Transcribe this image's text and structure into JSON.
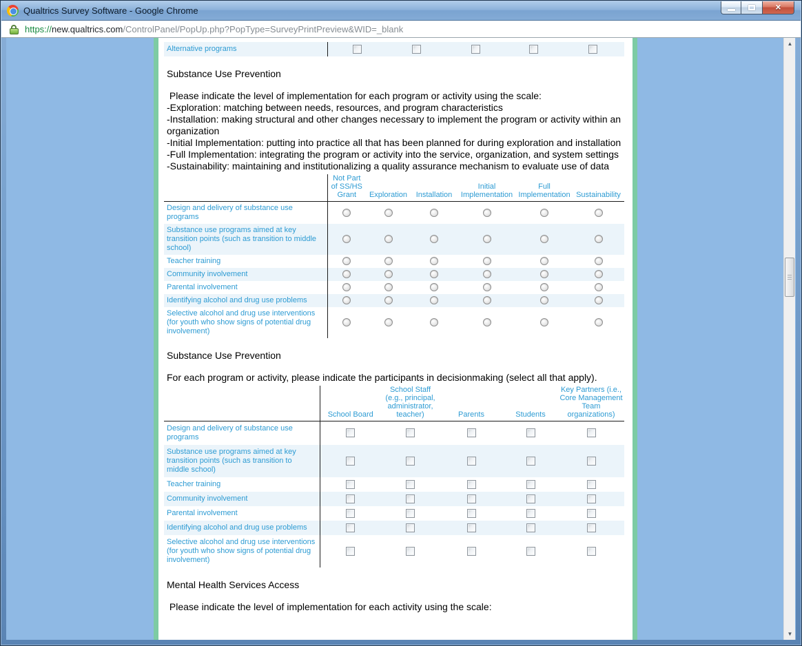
{
  "window": {
    "title": "Qualtrics Survey Software - Google Chrome",
    "controls": {
      "close_glyph": "×"
    }
  },
  "address_bar": {
    "scheme": "https://",
    "domain": "new.qualtrics.com",
    "path": "/ControlPanel/PopUp.php?PopType=SurveyPrintPreview&WID=_blank"
  },
  "scrollbar": {
    "up_glyph": "▲",
    "down_glyph": "▼"
  },
  "survey": {
    "carryover_row": {
      "label": "Alternative programs",
      "inputs": 5,
      "input_type": "checkbox"
    },
    "program_rows": [
      "Design and delivery of substance use programs",
      "Substance use programs aimed at key transition points (such as transition to middle school)",
      "Teacher training",
      "Community involvement",
      "Parental involvement",
      "Identifying alcohol and drug use problems",
      "Selective alcohol and drug use interventions (for youth who show signs of potential drug involvement)"
    ],
    "sections": [
      {
        "heading": "Substance Use Prevention",
        "intro_lines": [
          " Please indicate the level of implementation for each program or activity using the scale:",
          "-Exploration: matching between needs, resources, and program characteristics",
          "-Installation: making structural and other changes necessary to implement the program or activity within an organization",
          "-Initial Implementation: putting into practice all that has been planned for during exploration and installation",
          "-Full Implementation: integrating the program or activity into the service, organization, and system settings",
          "-Sustainability: maintaining and institutionalizing a quality assurance mechanism to evaluate use of data"
        ],
        "matrix": {
          "type": "radio",
          "columns": [
            "Not Part of SS/HS Grant",
            "Exploration",
            "Installation",
            "Initial Implementation",
            "Full Implementation",
            "Sustainability"
          ]
        }
      },
      {
        "heading": "Substance Use Prevention",
        "intro_lines": [
          "For each program or activity, please indicate the participants in decisionmaking (select all that apply)."
        ],
        "matrix": {
          "type": "checkbox",
          "columns": [
            "School Board",
            "School Staff (e.g., principal, administrator, teacher)",
            "Parents",
            "Students",
            "Key Partners (i.e., Core Management Team organizations)"
          ]
        }
      },
      {
        "heading": "Mental Health Services Access",
        "intro_lines": [
          " Please indicate the level of implementation for each activity using the scale:"
        ]
      }
    ]
  },
  "colors": {
    "accent_blue": "#2d9bd3",
    "row_shade": "#ebf4fa",
    "canvas_green": "#7dcba4",
    "page_blue": "#8fb9e4"
  }
}
